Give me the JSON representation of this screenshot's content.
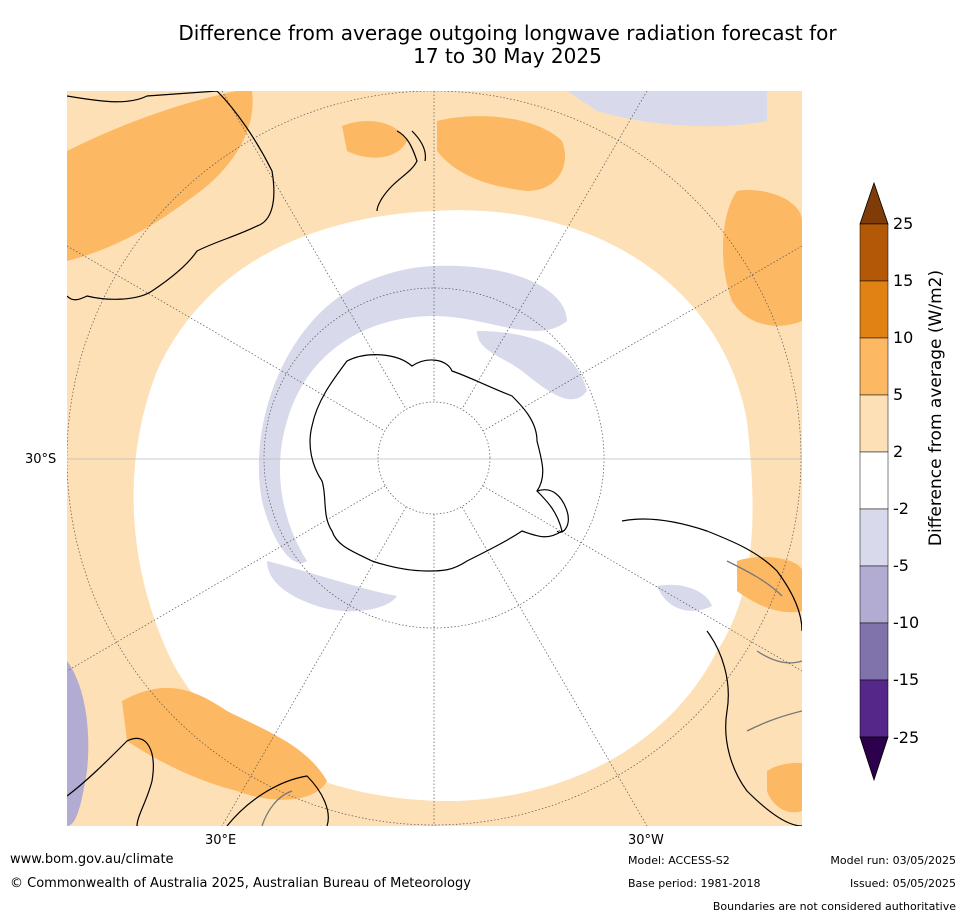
{
  "title_line1": "Difference from average outgoing longwave radiation forecast for",
  "title_line2": "17 to 30 May 2025",
  "map": {
    "projection": "south-polar-stereographic",
    "lat_labels": [
      "30°S"
    ],
    "lon_labels": [
      "30°E",
      "30°W"
    ],
    "region_colors": {
      "land_outline": "#000000",
      "grid": "#555555"
    }
  },
  "colorbar": {
    "title": "Difference from average (W/m2)",
    "levels": [
      "25",
      "15",
      "10",
      "5",
      "2",
      "-2",
      "-5",
      "-10",
      "-15",
      "-25"
    ],
    "colors_top_to_bottom": [
      "#7f3b08",
      "#b35806",
      "#e08214",
      "#fdb863",
      "#fee0b6",
      "#ffffff",
      "#d8daeb",
      "#b2abd2",
      "#8073ac",
      "#542788",
      "#2d004b"
    ]
  },
  "footer": {
    "website": "www.bom.gov.au/climate",
    "copyright": "© Commonwealth of Australia 2025, Australian Bureau of Meteorology",
    "model": "Model: ACCESS-S2",
    "base_period": "Base period: 1981-2018",
    "model_run": "Model run: 03/05/2025",
    "issued": "Issued: 05/05/2025",
    "boundaries": "Boundaries are not considered authoritative"
  }
}
